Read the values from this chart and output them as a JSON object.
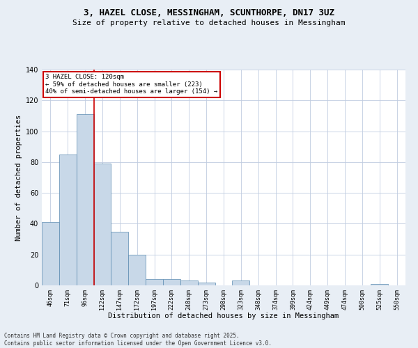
{
  "title1": "3, HAZEL CLOSE, MESSINGHAM, SCUNTHORPE, DN17 3UZ",
  "title2": "Size of property relative to detached houses in Messingham",
  "xlabel": "Distribution of detached houses by size in Messingham",
  "ylabel": "Number of detached properties",
  "categories": [
    "46sqm",
    "71sqm",
    "96sqm",
    "122sqm",
    "147sqm",
    "172sqm",
    "197sqm",
    "222sqm",
    "248sqm",
    "273sqm",
    "298sqm",
    "323sqm",
    "348sqm",
    "374sqm",
    "399sqm",
    "424sqm",
    "449sqm",
    "474sqm",
    "500sqm",
    "525sqm",
    "550sqm"
  ],
  "values": [
    41,
    85,
    111,
    79,
    35,
    20,
    4,
    4,
    3,
    2,
    0,
    3,
    0,
    0,
    0,
    0,
    0,
    0,
    0,
    1,
    0
  ],
  "bar_color": "#c8d8e8",
  "bar_edge_color": "#5a8ab0",
  "vline_x": 2,
  "vline_color": "#cc0000",
  "ylim": [
    0,
    140
  ],
  "yticks": [
    0,
    20,
    40,
    60,
    80,
    100,
    120,
    140
  ],
  "annotation_text": "3 HAZEL CLOSE: 120sqm\n← 59% of detached houses are smaller (223)\n40% of semi-detached houses are larger (154) →",
  "annotation_box_color": "#ffffff",
  "annotation_box_edge": "#cc0000",
  "footer1": "Contains HM Land Registry data © Crown copyright and database right 2025.",
  "footer2": "Contains public sector information licensed under the Open Government Licence v3.0.",
  "background_color": "#e8eef5",
  "plot_bg_color": "#ffffff",
  "grid_color": "#c0cce0",
  "title1_fontsize": 9,
  "title2_fontsize": 8,
  "ylabel_fontsize": 7.5,
  "xlabel_fontsize": 7.5
}
